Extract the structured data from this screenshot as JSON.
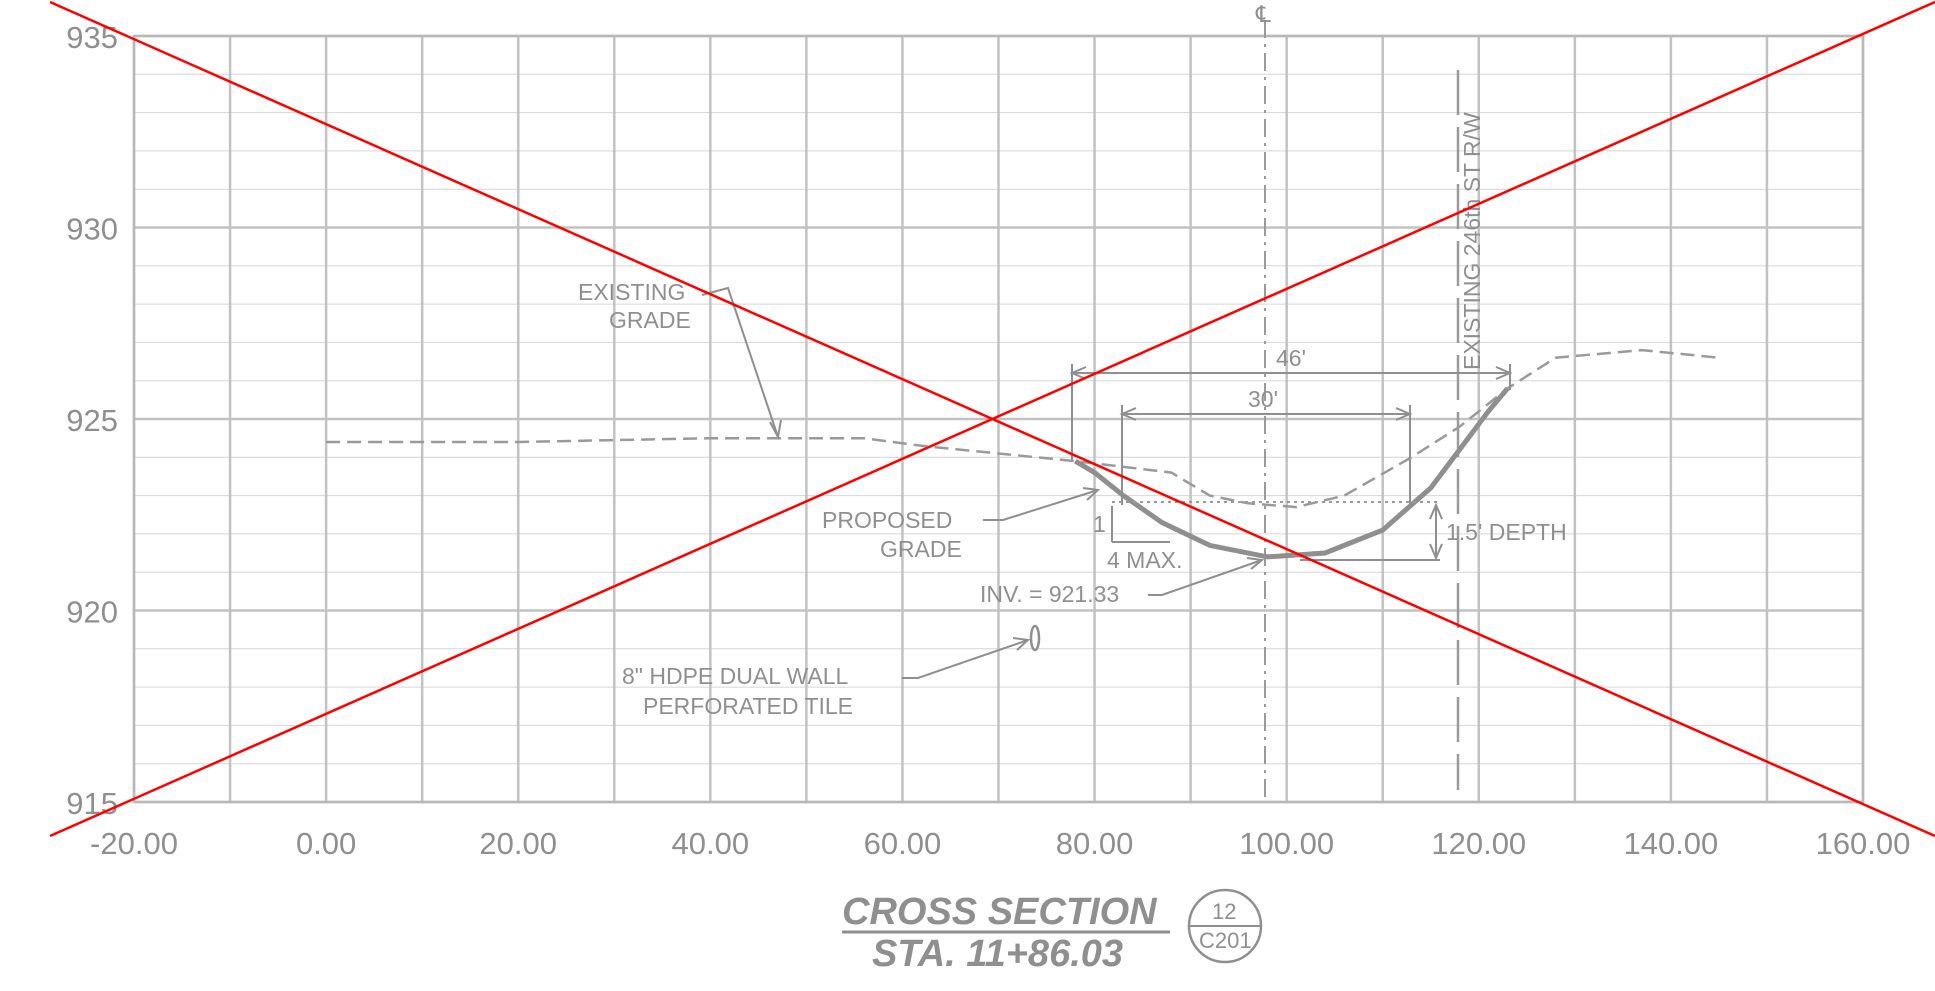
{
  "drawing": {
    "title_line1": "CROSS SECTION",
    "title_line2": "STA. 11+86.03",
    "ref_number": "12",
    "ref_sheet": "C201",
    "centerline_symbol": "℄",
    "row_label": "EXISTING 246th ST R/W"
  },
  "axes": {
    "x_ticks": [
      "-20.00",
      "0.00",
      "20.00",
      "40.00",
      "60.00",
      "80.00",
      "100.00",
      "120.00",
      "140.00",
      "160.00"
    ],
    "y_ticks": [
      "935",
      "930",
      "925",
      "920",
      "915"
    ],
    "x_range": [
      -20,
      160
    ],
    "y_range": [
      915,
      935
    ]
  },
  "annotations": {
    "existing_grade": [
      "EXISTING",
      "GRADE"
    ],
    "proposed_grade": [
      "PROPOSED",
      "GRADE"
    ],
    "invert": "INV. = 921.33",
    "tile": [
      "8\" HDPE DUAL WALL",
      "PERFORATED TILE"
    ],
    "dim_46": "46'",
    "dim_30": "30'",
    "slope_rise": "1",
    "slope_run": "4 MAX.",
    "depth": "1.5' DEPTH"
  },
  "colors": {
    "grid": "#c8c8c8",
    "line": "#8f8f8f",
    "cross": "#ff0000"
  },
  "chart_data": {
    "type": "line",
    "xlabel": "",
    "ylabel": "",
    "xlim": [
      -20,
      160
    ],
    "ylim": [
      915,
      935
    ],
    "grid": true,
    "series": [
      {
        "x": [
          0,
          20,
          40,
          56,
          62,
          70,
          78,
          88,
          92,
          96,
          101,
          106,
          113,
          118,
          123,
          128,
          137,
          145
        ],
        "y": [
          924.4,
          924.4,
          924.5,
          924.5,
          924.3,
          924.1,
          923.9,
          923.6,
          923.0,
          922.8,
          922.7,
          923.0,
          924.0,
          924.8,
          925.8,
          926.6,
          926.8,
          926.6
        ]
      },
      {
        "x": [
          78,
          80,
          83,
          87,
          92,
          98,
          104,
          110,
          115,
          118,
          121,
          123
        ],
        "y": [
          923.9,
          923.6,
          923.0,
          922.3,
          921.7,
          921.4,
          921.5,
          922.1,
          923.2,
          924.2,
          925.2,
          925.8
        ]
      }
    ]
  }
}
